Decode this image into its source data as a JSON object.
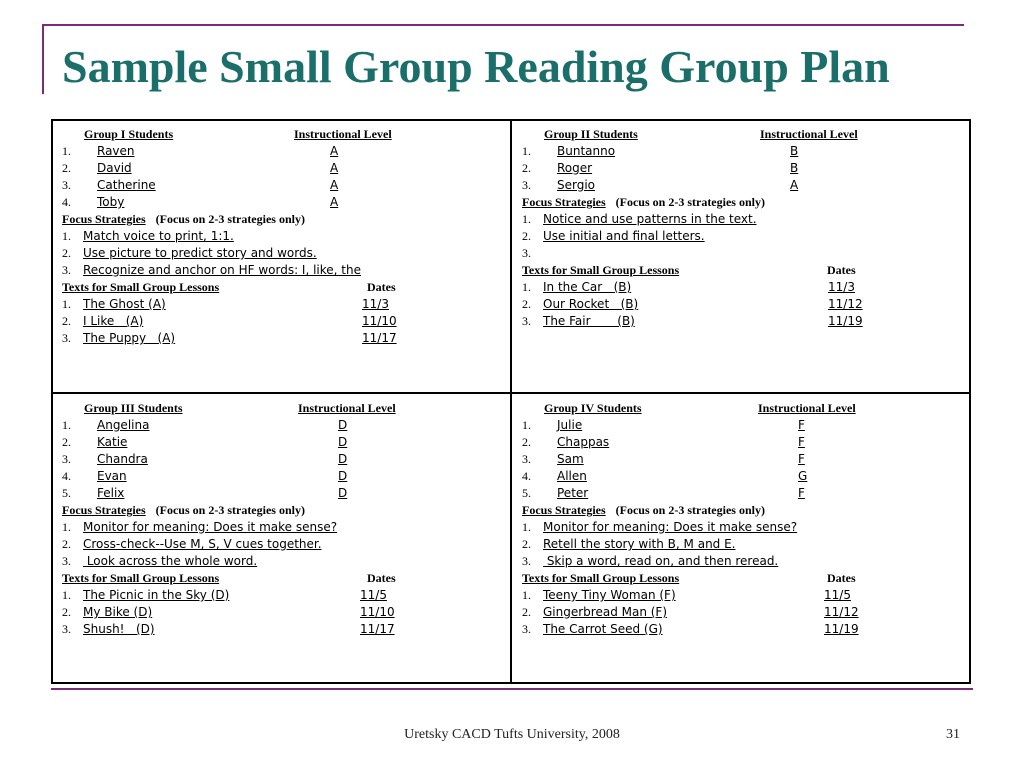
{
  "title": "Sample Small Group Reading Group Plan",
  "footer": "Uretsky CACD Tufts University, 2008",
  "page_number": "31",
  "groups": [
    {
      "students_header": "Group I   Students",
      "level_header": "Instructional Level",
      "students": [
        {
          "num": "1.",
          "name": "Raven",
          "level": "A"
        },
        {
          "num": "2.",
          "name": "David",
          "level": "A"
        },
        {
          "num": "3.",
          "name": "Catherine",
          "level": "A"
        },
        {
          "num": "4.",
          "name": "Toby",
          "level": "A"
        }
      ],
      "focus_label": "Focus Strategies",
      "focus_note": "(Focus on 2-3 strategies only)",
      "strategies": [
        {
          "num": "1.",
          "text": "Match voice to print, 1:1."
        },
        {
          "num": "2.",
          "text": "Use picture to predict story and words."
        },
        {
          "num": "3.",
          "text": "Recognize and anchor on HF words: I, like, the"
        }
      ],
      "texts_header": "Texts for Small Group Lessons",
      "dates_header": "Dates",
      "texts": [
        {
          "num": "1.",
          "title": "The Ghost (A)",
          "date": "11/3"
        },
        {
          "num": "2.",
          "title": "I Like   (A)",
          "date": "11/10"
        },
        {
          "num": "3.",
          "title": "The Puppy   (A)",
          "date": "11/17"
        }
      ]
    },
    {
      "students_header": "Group II   Students",
      "level_header": "Instructional Level",
      "students": [
        {
          "num": "1.",
          "name": "Buntanno",
          "level": "B"
        },
        {
          "num": "2.",
          "name": "Roger",
          "level": "B"
        },
        {
          "num": "3.",
          "name": "Sergio",
          "level": "A"
        }
      ],
      "focus_label": "Focus Strategies",
      "focus_note": "(Focus on 2-3 strategies only)",
      "strategies": [
        {
          "num": "1.",
          "text": "Notice and use patterns in the text."
        },
        {
          "num": "2.",
          "text": "Use initial and final letters."
        },
        {
          "num": "3.",
          "text": ""
        }
      ],
      "texts_header": "Texts for Small Group Lessons",
      "dates_header": "Dates",
      "texts": [
        {
          "num": "1.",
          "title": "In the Car   (B)",
          "date": "11/3"
        },
        {
          "num": "2.",
          "title": "Our Rocket   (B)",
          "date": "11/12"
        },
        {
          "num": "3.",
          "title": "The Fair       (B)",
          "date": "11/19"
        }
      ]
    },
    {
      "students_header": "Group III   Students",
      "level_header": "Instructional Level",
      "students": [
        {
          "num": "1.",
          "name": "Angelina",
          "level": "D"
        },
        {
          "num": "2.",
          "name": "Katie",
          "level": "D"
        },
        {
          "num": "3.",
          "name": "Chandra",
          "level": "D"
        },
        {
          "num": "4.",
          "name": "Evan",
          "level": "D"
        },
        {
          "num": "5.",
          "name": "Felix",
          "level": "D"
        }
      ],
      "focus_label": "Focus Strategies",
      "focus_note": "(Focus on 2-3 strategies only)",
      "strategies": [
        {
          "num": "1.",
          "text": "Monitor for meaning: Does it make sense?"
        },
        {
          "num": "2.",
          "text": "Cross-check--Use M, S, V cues together."
        },
        {
          "num": "3.",
          "text": " Look across the whole word."
        }
      ],
      "texts_header": "Texts for Small Group Lessons",
      "dates_header": "Dates",
      "texts": [
        {
          "num": "1.",
          "title": "The Picnic in the Sky (D)",
          "date": "11/5"
        },
        {
          "num": "2.",
          "title": "My Bike (D)",
          "date": "11/10"
        },
        {
          "num": "3.",
          "title": "Shush!   (D)",
          "date": "11/17"
        }
      ]
    },
    {
      "students_header": "Group IV   Students",
      "level_header": "Instructional Level",
      "students": [
        {
          "num": "1.",
          "name": "Julie",
          "level": "F"
        },
        {
          "num": "2.",
          "name": "Chappas",
          "level": "F"
        },
        {
          "num": "3.",
          "name": "Sam",
          "level": "F"
        },
        {
          "num": "4.",
          "name": "Allen",
          "level": "G"
        },
        {
          "num": "5.",
          "name": "Peter",
          "level": "F"
        }
      ],
      "focus_label": "Focus Strategies",
      "focus_note": "(Focus on 2-3 strategies only)",
      "strategies": [
        {
          "num": "1.",
          "text": "Monitor for meaning: Does it make sense?"
        },
        {
          "num": "2.",
          "text": "Retell the story with B, M and E."
        },
        {
          "num": "3.",
          "text": " Skip a word, read on, and then reread."
        }
      ],
      "texts_header": "Texts for Small Group Lessons",
      "dates_header": "Dates",
      "texts": [
        {
          "num": "1.",
          "title": "Teeny Tiny Woman (F)",
          "date": "11/5"
        },
        {
          "num": "2.",
          "title": "Gingerbread Man (F)",
          "date": "11/12"
        },
        {
          "num": "3.",
          "title": "The Carrot Seed (G)",
          "date": "11/19"
        }
      ]
    }
  ]
}
